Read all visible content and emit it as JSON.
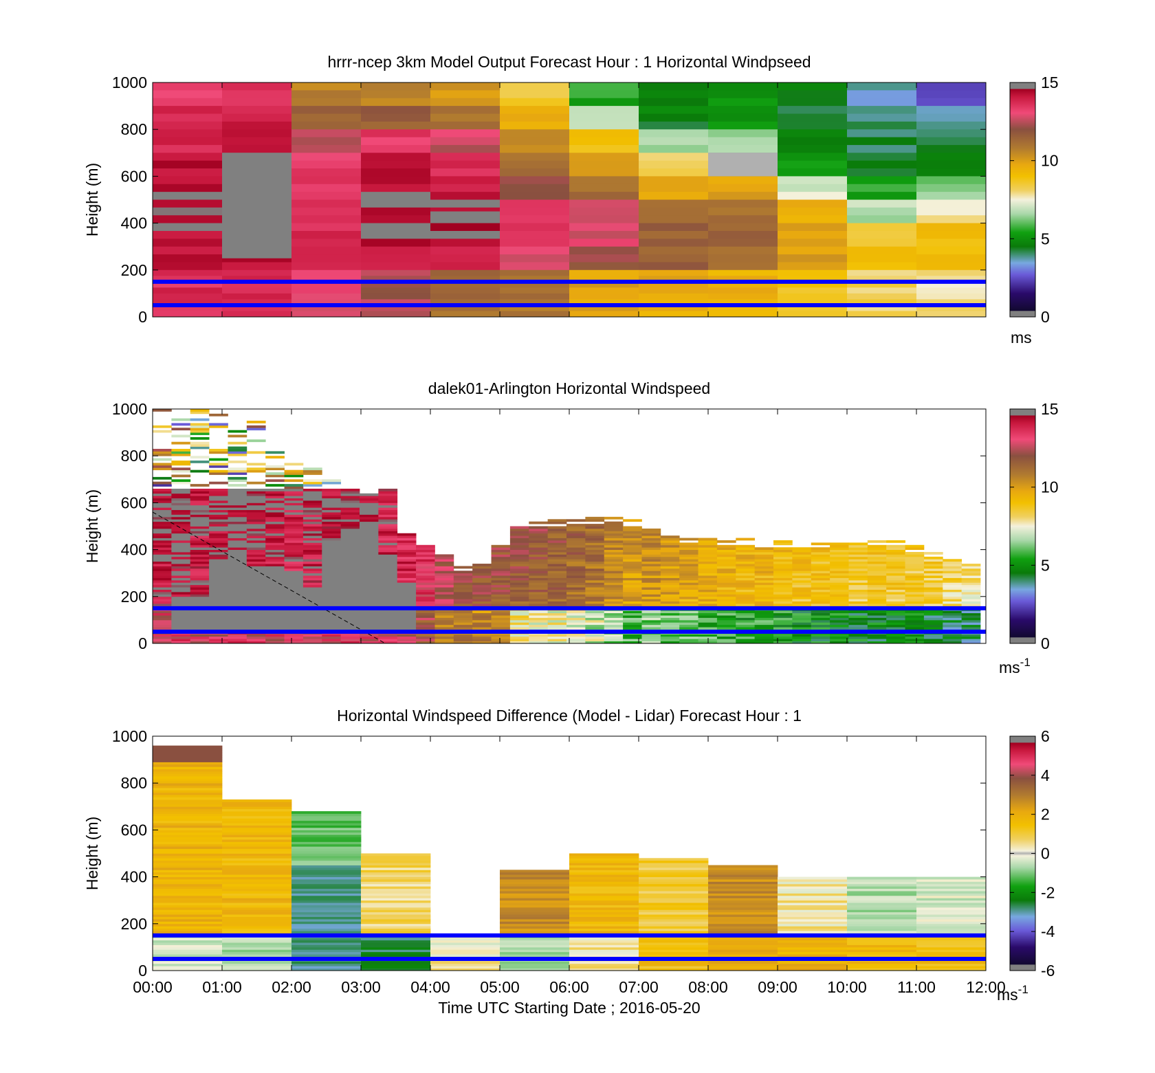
{
  "chart_data": [
    {
      "type": "heatmap",
      "title": "hrrr-ncep 3km Model Output   Forecast Hour : 1 Horizontal Windpseed",
      "ylabel": "Height (m)",
      "ylim": [
        0,
        1000
      ],
      "yticks": [
        "0",
        "200",
        "400",
        "600",
        "800",
        "1000"
      ],
      "xlim": [
        0,
        12
      ],
      "colorbar": {
        "ticks": [
          "0",
          "5",
          "10",
          "15"
        ],
        "range": [
          0,
          15
        ],
        "unit": "ms"
      },
      "reference_lines_m": [
        50,
        150
      ],
      "reference_line_color": "#0000ff",
      "x_hours": [
        0,
        1,
        2,
        3,
        4,
        5,
        6,
        7,
        8,
        9,
        10,
        11
      ],
      "heights_m": [
        950,
        850,
        750,
        650,
        550,
        450,
        350,
        250,
        100
      ],
      "values": [
        [
          13.2,
          13.3,
          10.6,
          10.5,
          10.1,
          8.5,
          5.5,
          4.6,
          5.0,
          4.5,
          3.6,
          2.5
        ],
        [
          13.6,
          13.9,
          11.4,
          11.6,
          11.1,
          9.6,
          7.0,
          4.6,
          5.2,
          4.5,
          4.0,
          3.6
        ],
        [
          13.9,
          14.2,
          12.5,
          13.3,
          12.7,
          10.4,
          8.9,
          6.4,
          6.6,
          4.5,
          4.2,
          4.2
        ],
        [
          14.2,
          15.4,
          13.4,
          14.0,
          13.6,
          11.3,
          9.9,
          8.0,
          15.4,
          5.3,
          4.4,
          4.8
        ],
        [
          14.4,
          15.4,
          13.4,
          14.4,
          14.2,
          12.3,
          11.2,
          9.7,
          9.8,
          7.2,
          5.4,
          6.2
        ],
        [
          14.5,
          15.4,
          13.5,
          14.6,
          14.6,
          13.5,
          12.6,
          11.2,
          11.0,
          9.4,
          6.8,
          7.6
        ],
        [
          14.4,
          15.4,
          13.6,
          14.5,
          14.4,
          13.4,
          12.9,
          11.6,
          11.4,
          9.7,
          8.7,
          9.0
        ],
        [
          14.1,
          14.3,
          13.6,
          14.2,
          14.0,
          13.0,
          12.0,
          11.6,
          11.0,
          10.0,
          9.1,
          9.2
        ],
        [
          13.6,
          13.6,
          13.1,
          12.3,
          11.1,
          11.0,
          9.8,
          9.6,
          9.5,
          8.9,
          8.2,
          7.9
        ]
      ]
    },
    {
      "type": "heatmap",
      "title": "dalek01-Arlington  Horizontal Windspeed",
      "ylabel": "Height (m)",
      "ylim": [
        0,
        1000
      ],
      "yticks": [
        "0",
        "200",
        "400",
        "600",
        "800",
        "1000"
      ],
      "xlim": [
        0,
        12
      ],
      "colorbar": {
        "ticks": [
          "0",
          "5",
          "10",
          "15"
        ],
        "range": [
          0,
          15
        ],
        "unit": "ms",
        "unit_exponent": "-1"
      },
      "reference_lines_m": [
        50,
        150
      ],
      "reference_line_color": "#0000ff",
      "data_top_m": [
        1000,
        1000,
        1000,
        1000,
        940,
        950,
        820,
        780,
        760,
        720,
        660,
        640,
        660,
        470,
        430,
        380,
        330,
        360,
        440,
        500,
        520,
        530,
        540,
        540,
        540,
        530,
        500,
        480,
        460,
        450,
        450,
        450,
        440,
        440,
        440,
        440,
        440,
        440,
        440,
        440,
        420,
        400,
        380,
        350
      ],
      "gray_region_top_m": [
        0,
        200,
        200,
        360,
        400,
        330,
        310,
        300,
        240,
        440,
        490,
        520,
        380,
        260,
        0,
        0,
        0,
        0,
        0,
        0,
        0,
        0,
        0,
        0,
        0,
        0,
        0,
        0,
        0,
        0,
        0,
        0,
        0,
        0,
        0,
        0,
        0,
        0,
        0,
        0,
        0,
        0,
        0,
        0
      ],
      "profile_windspeed_ms": [
        14.0,
        14.2,
        13.8,
        14.0,
        14.3,
        14.1,
        13.9,
        13.7,
        13.8,
        13.9,
        14.2,
        14.0,
        13.6,
        13.4,
        13.0,
        12.0,
        11.6,
        11.5,
        11.4,
        11.3,
        11.2,
        11.0,
        10.8,
        10.5,
        10.0,
        9.5,
        9.8,
        9.5,
        9.3,
        9.2,
        9.0,
        8.8,
        8.9,
        8.7,
        8.5,
        8.4,
        8.4,
        8.3,
        8.2,
        8.3,
        8.2,
        8.1,
        7.8,
        7.5
      ],
      "dashed_line_m": [
        [
          0.0,
          560
        ],
        [
          3.35,
          0
        ]
      ]
    },
    {
      "type": "heatmap",
      "title": "Horizontal Windspeed Difference (Model - Lidar) Forecast Hour : 1",
      "xlabel": "Time UTC  Starting Date ; 2016-05-20",
      "ylabel": "Height (m)",
      "ylim": [
        0,
        1000
      ],
      "yticks": [
        "0",
        "200",
        "400",
        "600",
        "800",
        "1000"
      ],
      "xlim": [
        0,
        12
      ],
      "xticks": [
        "00:00",
        "01:00",
        "02:00",
        "03:00",
        "04:00",
        "05:00",
        "06:00",
        "07:00",
        "08:00",
        "09:00",
        "10:00",
        "11:00",
        "12:00"
      ],
      "colorbar": {
        "ticks": [
          "-6",
          "-4",
          "-2",
          "0",
          "2",
          "4",
          "6"
        ],
        "range": [
          -6,
          6
        ],
        "unit": "ms",
        "unit_exponent": "-1"
      },
      "reference_lines_m": [
        50,
        150
      ],
      "reference_line_color": "#0000ff",
      "column_top_m": [
        960,
        730,
        680,
        500,
        150,
        430,
        500,
        480,
        450,
        400,
        400,
        400
      ],
      "upper_difference_ms": [
        1.5,
        1.4,
        -1.2,
        0.5,
        0.3,
        2.3,
        1.4,
        0.8,
        2.3,
        0.2,
        -0.6,
        -0.3
      ],
      "lower_difference_ms": [
        -0.4,
        -0.6,
        -2.5,
        -2.6,
        0.1,
        -0.8,
        0.2,
        1.2,
        1.6,
        1.5,
        1.3,
        1.2
      ]
    }
  ]
}
